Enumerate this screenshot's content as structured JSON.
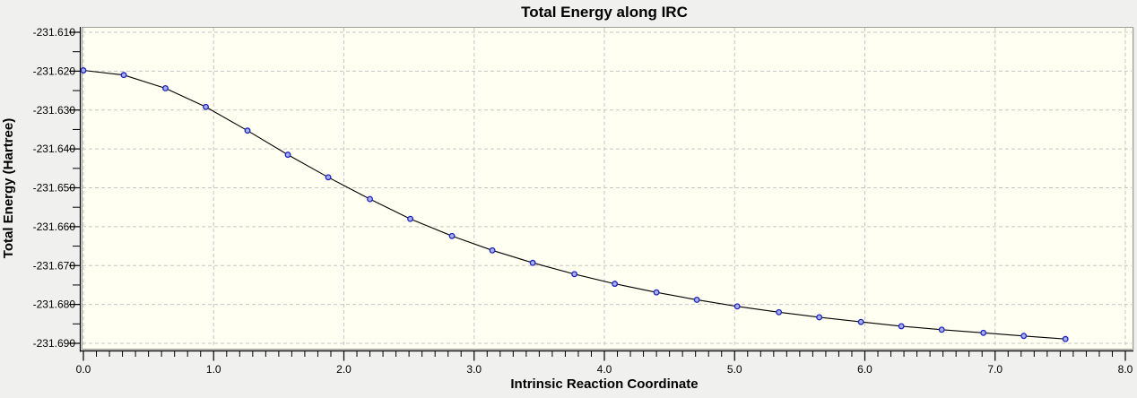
{
  "window": {
    "background_color": "#f0f0ee"
  },
  "chart_data": {
    "type": "line",
    "title": "Total Energy along IRC",
    "xlabel": "Intrinsic Reaction Coordinate",
    "ylabel": "Total Energy (Hartree)",
    "xlim": [
      0.0,
      8.0
    ],
    "ylim": [
      -231.69,
      -231.61
    ],
    "grid": true,
    "legend_position": "none",
    "x_major_tick_step": 1.0,
    "x_minor_tick_step": 0.1,
    "y_major_tick_step": 0.01,
    "y_minor_tick_step": 0.005,
    "x_tick_values": [
      0,
      1,
      2,
      3,
      4,
      5,
      6,
      7,
      8
    ],
    "x_tick_labels": [
      "0.0",
      "1.0",
      "2.0",
      "3.0",
      "4.0",
      "5.0",
      "6.0",
      "7.0",
      "8.0"
    ],
    "y_tick_values": [
      -231.61,
      -231.62,
      -231.63,
      -231.64,
      -231.65,
      -231.66,
      -231.67,
      -231.68,
      -231.69
    ],
    "y_tick_labels": [
      "-231.610",
      "-231.620",
      "-231.630",
      "-231.640",
      "-231.650",
      "-231.660",
      "-231.670",
      "-231.680",
      "-231.690"
    ],
    "series": [
      {
        "name": "Total Energy",
        "x": [
          0.0,
          0.31,
          0.63,
          0.94,
          1.26,
          1.57,
          1.88,
          2.2,
          2.51,
          2.83,
          3.14,
          3.45,
          3.77,
          4.08,
          4.4,
          4.71,
          5.02,
          5.34,
          5.65,
          5.97,
          6.28,
          6.59,
          6.91,
          7.22,
          7.54
        ],
        "y": [
          -231.6198,
          -231.621,
          -231.6244,
          -231.6292,
          -231.6353,
          -231.6415,
          -231.6473,
          -231.6529,
          -231.658,
          -231.6624,
          -231.6661,
          -231.6693,
          -231.6722,
          -231.6747,
          -231.6769,
          -231.6788,
          -231.6805,
          -231.682,
          -231.6833,
          -231.6845,
          -231.6856,
          -231.6865,
          -231.6873,
          -231.6881,
          -231.6889
        ]
      }
    ],
    "style": {
      "plot_background_color": "#fffff2",
      "frame_color": "#9e9e9e",
      "grid_color": "#c6c6c6",
      "axis_color": "#000000",
      "line_color": "#000000",
      "marker_fill": "#a3b2f2",
      "marker_stroke": "#2222bb"
    }
  }
}
